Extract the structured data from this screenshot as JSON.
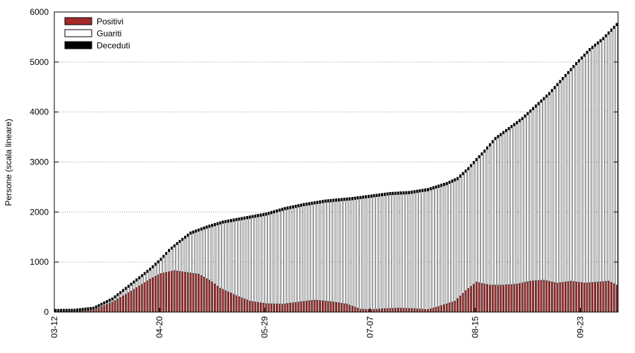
{
  "chart_data": {
    "type": "bar",
    "stacked": true,
    "title": "",
    "xlabel": "",
    "ylabel": "Persone (scala lineare)",
    "ylim": [
      0,
      6000
    ],
    "yticks": [
      0,
      1000,
      2000,
      3000,
      4000,
      5000,
      6000
    ],
    "grid": "horizontal-dotted",
    "legend_position": "top-left",
    "start_date": "03-12",
    "x_tick_labels": [
      {
        "date": "03-12",
        "label": "03-12"
      },
      {
        "date": "04-20",
        "label": "04-20"
      },
      {
        "date": "05-29",
        "label": "05-29"
      },
      {
        "date": "07-07",
        "label": "07-07"
      },
      {
        "date": "08-15",
        "label": "08-15"
      },
      {
        "date": "09-23",
        "label": "09-23"
      }
    ],
    "series": [
      {
        "name": "Positivi",
        "color": "#a52a2a"
      },
      {
        "name": "Guariti",
        "color": "#ffffff"
      },
      {
        "name": "Deceduti",
        "color": "#000000"
      }
    ],
    "total_anchors": [
      [
        "03-12",
        5
      ],
      [
        "03-19",
        10
      ],
      [
        "03-26",
        60
      ],
      [
        "04-02",
        260
      ],
      [
        "04-09",
        570
      ],
      [
        "04-16",
        880
      ],
      [
        "04-20",
        1080
      ],
      [
        "04-23",
        1260
      ],
      [
        "04-26",
        1400
      ],
      [
        "05-01",
        1610
      ],
      [
        "05-07",
        1730
      ],
      [
        "05-13",
        1830
      ],
      [
        "05-20",
        1900
      ],
      [
        "05-29",
        1990
      ],
      [
        "06-05",
        2100
      ],
      [
        "06-12",
        2180
      ],
      [
        "06-20",
        2250
      ],
      [
        "06-30",
        2300
      ],
      [
        "07-07",
        2350
      ],
      [
        "07-14",
        2400
      ],
      [
        "07-21",
        2420
      ],
      [
        "07-28",
        2480
      ],
      [
        "08-04",
        2600
      ],
      [
        "08-08",
        2700
      ],
      [
        "08-12",
        2900
      ],
      [
        "08-15",
        3080
      ],
      [
        "08-18",
        3250
      ],
      [
        "08-22",
        3500
      ],
      [
        "08-27",
        3700
      ],
      [
        "09-01",
        3900
      ],
      [
        "09-06",
        4150
      ],
      [
        "09-11",
        4400
      ],
      [
        "09-16",
        4700
      ],
      [
        "09-21",
        5000
      ],
      [
        "09-26",
        5280
      ],
      [
        "10-01",
        5500
      ],
      [
        "10-06",
        5780
      ]
    ],
    "positivi_anchors": [
      [
        "03-12",
        3
      ],
      [
        "03-19",
        6
      ],
      [
        "03-26",
        40
      ],
      [
        "04-02",
        200
      ],
      [
        "04-09",
        420
      ],
      [
        "04-16",
        660
      ],
      [
        "04-20",
        770
      ],
      [
        "04-25",
        830
      ],
      [
        "04-30",
        790
      ],
      [
        "05-04",
        760
      ],
      [
        "05-08",
        640
      ],
      [
        "05-12",
        480
      ],
      [
        "05-18",
        330
      ],
      [
        "05-23",
        220
      ],
      [
        "05-29",
        170
      ],
      [
        "06-04",
        160
      ],
      [
        "06-10",
        200
      ],
      [
        "06-16",
        240
      ],
      [
        "06-22",
        210
      ],
      [
        "06-28",
        160
      ],
      [
        "07-03",
        60
      ],
      [
        "07-07",
        50
      ],
      [
        "07-12",
        70
      ],
      [
        "07-17",
        80
      ],
      [
        "07-23",
        70
      ],
      [
        "07-28",
        50
      ],
      [
        "08-02",
        130
      ],
      [
        "08-07",
        220
      ],
      [
        "08-11",
        430
      ],
      [
        "08-15",
        600
      ],
      [
        "08-20",
        540
      ],
      [
        "08-25",
        540
      ],
      [
        "08-30",
        560
      ],
      [
        "09-04",
        620
      ],
      [
        "09-09",
        640
      ],
      [
        "09-14",
        580
      ],
      [
        "09-19",
        620
      ],
      [
        "09-24",
        580
      ],
      [
        "09-29",
        600
      ],
      [
        "10-03",
        620
      ],
      [
        "10-06",
        540
      ]
    ],
    "deceduti_anchors": [
      [
        "03-12",
        0
      ],
      [
        "03-19",
        1
      ],
      [
        "03-26",
        10
      ],
      [
        "04-02",
        25
      ],
      [
        "04-09",
        40
      ],
      [
        "04-16",
        50
      ],
      [
        "04-23",
        55
      ],
      [
        "04-30",
        58
      ],
      [
        "05-29",
        60
      ],
      [
        "07-07",
        60
      ],
      [
        "08-15",
        60
      ],
      [
        "09-23",
        60
      ],
      [
        "10-06",
        60
      ]
    ]
  }
}
